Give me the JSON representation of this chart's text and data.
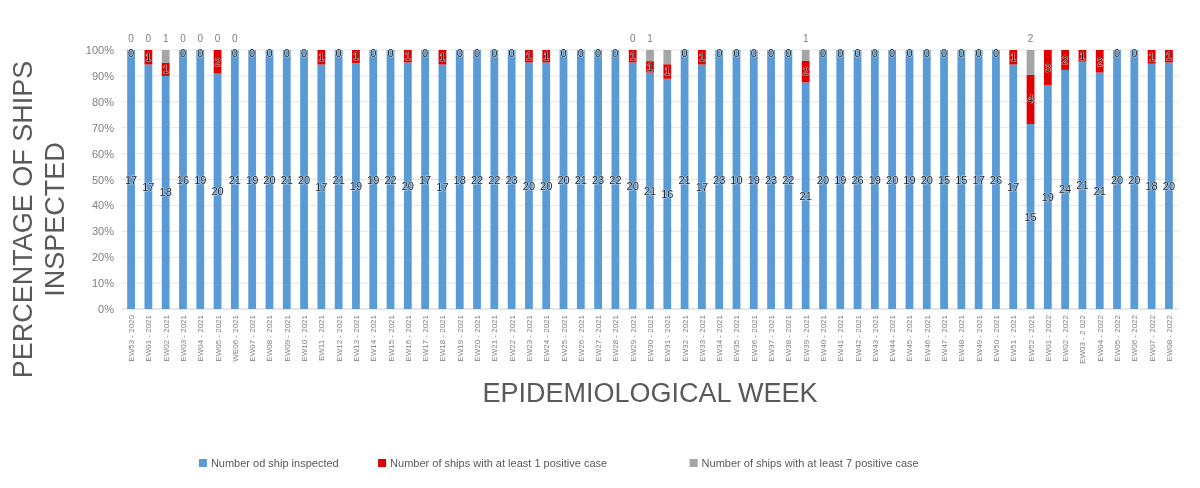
{
  "chart_data": {
    "type": "bar",
    "stacked": true,
    "xlabel": "EPIDEMIOLOGICAL WEEK",
    "ylabel": "PERCENTAGE OF SHIPS INSPECTED",
    "legend": "bottom",
    "grid": "y",
    "ylim": [
      0,
      100
    ],
    "yticks": [
      {
        "value": 0,
        "label": "0%"
      },
      {
        "value": 10,
        "label": "10%"
      },
      {
        "value": 20,
        "label": "20%"
      },
      {
        "value": 30,
        "label": "30%"
      },
      {
        "value": 40,
        "label": "40%"
      },
      {
        "value": 50,
        "label": "50%"
      },
      {
        "value": 60,
        "label": "60%"
      },
      {
        "value": 70,
        "label": "70%"
      },
      {
        "value": 80,
        "label": "80%"
      },
      {
        "value": 90,
        "label": "90%"
      },
      {
        "value": 100,
        "label": "100%"
      }
    ],
    "categories": [
      "EW53 - 2020",
      "EW01 - 2021",
      "EW02 - 2021",
      "EW03 - 2021",
      "EW04 - 2021",
      "EW05 - 2021",
      "WE06 - 2021",
      "EW07 - 2021",
      "EW08 - 2021",
      "EW09 - 2021",
      "EW10 - 2021",
      "EW11 - 2021",
      "EW12 - 2021",
      "EW13 - 2021",
      "EW14 - 2021",
      "EW15 - 2021",
      "EW16 - 2021",
      "EW17 - 2021",
      "EW18 - 2021",
      "EW19 - 2021",
      "EW20 - 2021",
      "EW21 - 2021",
      "EW22 - 2021",
      "EW23 - 2021",
      "EW24 - 2021",
      "EW25 - 2021",
      "EW26 - 2021",
      "EW27 - 2021",
      "EW28 - 2021",
      "EW29 - 2021",
      "EW30 - 2021",
      "EW31 - 2021",
      "EW32 - 2021",
      "EW33 - 2021",
      "EW34 - 2021",
      "EW35 - 2021",
      "EW36 - 2021",
      "EW37 - 2021",
      "EW38 - 2021",
      "EW39 - 2021",
      "EW40 - 2021",
      "EW41 - 2021",
      "EW42 - 2021",
      "EW43 - 2021",
      "EW44 - 2021",
      "EW45 - 2021",
      "EW46 - 2021",
      "EW47 - 2021",
      "EW48 - 2021",
      "EW49 - 2021",
      "EW50 - 2021",
      "EW51 - 2021",
      "EW52 - 2021",
      "EW01 - 2022",
      "EW02 - 2022",
      "EW03 - 2 022",
      "EW04 - 2022",
      "EW05 - 2022",
      "EW06 - 2022",
      "EW07 - 2022",
      "EW08 - 2022"
    ],
    "series": [
      {
        "name": "Number od ship inspected",
        "color": "#5b9bd5",
        "values": [
          100,
          94.4,
          90,
          100,
          100,
          90.9,
          100,
          100,
          100,
          100,
          100,
          94.4,
          100,
          95,
          100,
          100,
          95.2,
          100,
          94.4,
          100,
          100,
          100,
          100,
          95.2,
          95.2,
          100,
          100,
          100,
          100,
          95.2,
          91.3,
          88.9,
          100,
          94.4,
          100,
          100,
          100,
          100,
          100,
          87.5,
          100,
          100,
          100,
          100,
          100,
          100,
          100,
          100,
          100,
          100,
          100,
          94.4,
          71.4,
          86.4,
          92.3,
          95.5,
          91.3,
          100,
          100,
          94.7,
          95.2
        ]
      },
      {
        "name": "Number of ships with at least 1 positive case",
        "color": "#e00000",
        "values": [
          0,
          5.6,
          5,
          0,
          0,
          9.1,
          0,
          0,
          0,
          0,
          0,
          5.6,
          0,
          5,
          0,
          0,
          4.8,
          0,
          5.6,
          0,
          0,
          0,
          0,
          4.8,
          4.8,
          0,
          0,
          0,
          0,
          4.8,
          4.4,
          5.6,
          0,
          5.6,
          0,
          0,
          0,
          0,
          0,
          8.3,
          0,
          0,
          0,
          0,
          0,
          0,
          0,
          0,
          0,
          0,
          0,
          5.6,
          19,
          13.6,
          7.7,
          4.5,
          8.7,
          0,
          0,
          5.3,
          4.8
        ]
      },
      {
        "name": "Number of ships with at least 7 positive case",
        "color": "#a5a5a5",
        "values": [
          0,
          0,
          5,
          0,
          0,
          0,
          0,
          0,
          0,
          0,
          0,
          0,
          0,
          0,
          0,
          0,
          0,
          0,
          0,
          0,
          0,
          0,
          0,
          0,
          0,
          0,
          0,
          0,
          0,
          0,
          4.3,
          5.5,
          0,
          0,
          0,
          0,
          0,
          0,
          0,
          4.2,
          0,
          0,
          0,
          0,
          0,
          0,
          0,
          0,
          0,
          0,
          0,
          0,
          9.6,
          0,
          0,
          0,
          0,
          0,
          0,
          0,
          0
        ]
      }
    ],
    "annotations": [
      {
        "text": "17",
        "x": "EW53 - 2020",
        "y": 50
      },
      {
        "text": "17",
        "x": "EW01 - 2021",
        "y": 47.2
      },
      {
        "text": "18",
        "x": "EW02 - 2021",
        "y": 45
      },
      {
        "text": "16",
        "x": "EW03 - 2021",
        "y": 50
      },
      {
        "text": "19",
        "x": "EW04 - 2021",
        "y": 50
      },
      {
        "text": "20",
        "x": "EW05 - 2021",
        "y": 45.5
      },
      {
        "text": "21",
        "x": "WE06 - 2021",
        "y": 50
      },
      {
        "text": "19",
        "x": "EW07 - 2021",
        "y": 50
      },
      {
        "text": "20",
        "x": "EW08 - 2021",
        "y": 50
      },
      {
        "text": "21",
        "x": "EW09 - 2021",
        "y": 50
      },
      {
        "text": "20",
        "x": "EW10 - 2021",
        "y": 50
      },
      {
        "text": "17",
        "x": "EW11 - 2021",
        "y": 47.2
      },
      {
        "text": "21",
        "x": "EW12 - 2021",
        "y": 50
      },
      {
        "text": "19",
        "x": "EW13 - 2021",
        "y": 47.5
      },
      {
        "text": "19",
        "x": "EW14 - 2021",
        "y": 50
      },
      {
        "text": "22",
        "x": "EW15 - 2021",
        "y": 50
      },
      {
        "text": "20",
        "x": "EW16 - 2021",
        "y": 47.6
      },
      {
        "text": "17",
        "x": "EW17 - 2021",
        "y": 50
      },
      {
        "text": "17",
        "x": "EW18 - 2021",
        "y": 47.2
      },
      {
        "text": "18",
        "x": "EW19 - 2021",
        "y": 50
      },
      {
        "text": "22",
        "x": "EW20 - 2021",
        "y": 50
      },
      {
        "text": "22",
        "x": "EW21 - 2021",
        "y": 50
      },
      {
        "text": "23",
        "x": "EW22 - 2021",
        "y": 50
      },
      {
        "text": "20",
        "x": "EW23 - 2021",
        "y": 47.6
      },
      {
        "text": "20",
        "x": "EW24 - 2021",
        "y": 47.6
      },
      {
        "text": "20",
        "x": "EW25 - 2021",
        "y": 50
      },
      {
        "text": "21",
        "x": "EW26 - 2021",
        "y": 50
      },
      {
        "text": "23",
        "x": "EW27 - 2021",
        "y": 50
      },
      {
        "text": "22",
        "x": "EW28 - 2021",
        "y": 50
      },
      {
        "text": "20",
        "x": "EW29 - 2021",
        "y": 47.6
      },
      {
        "text": "21",
        "x": "EW30 - 2021",
        "y": 45.7
      },
      {
        "text": "16",
        "x": "EW31 - 2021",
        "y": 44.5
      },
      {
        "text": "21",
        "x": "EW32 - 2021",
        "y": 50
      },
      {
        "text": "17",
        "x": "EW33 - 2021",
        "y": 47.2
      },
      {
        "text": "23",
        "x": "EW34 - 2021",
        "y": 50
      },
      {
        "text": "10",
        "x": "EW35 - 2021",
        "y": 50
      },
      {
        "text": "19",
        "x": "EW36 - 2021",
        "y": 50
      },
      {
        "text": "23",
        "x": "EW37 - 2021",
        "y": 50
      },
      {
        "text": "22",
        "x": "EW38 - 2021",
        "y": 50
      },
      {
        "text": "21",
        "x": "EW39 - 2021",
        "y": 43.8
      },
      {
        "text": "20",
        "x": "EW40 - 2021",
        "y": 50
      },
      {
        "text": "19",
        "x": "EW41 - 2021",
        "y": 50
      },
      {
        "text": "26",
        "x": "EW42 - 2021",
        "y": 50
      },
      {
        "text": "19",
        "x": "EW43 - 2021",
        "y": 50
      },
      {
        "text": "20",
        "x": "EW44 - 2021",
        "y": 50
      },
      {
        "text": "19",
        "x": "EW45 - 2021",
        "y": 50
      },
      {
        "text": "20",
        "x": "EW46 - 2021",
        "y": 50
      },
      {
        "text": "15",
        "x": "EW47 - 2021",
        "y": 50
      },
      {
        "text": "15",
        "x": "EW48 - 2021",
        "y": 50
      },
      {
        "text": "17",
        "x": "EW49 - 2021",
        "y": 50
      },
      {
        "text": "26",
        "x": "EW50 - 2021",
        "y": 50
      },
      {
        "text": "17",
        "x": "EW51 - 2021",
        "y": 47.2
      },
      {
        "text": "15",
        "x": "EW52 - 2021",
        "y": 35.7
      },
      {
        "text": "19",
        "x": "EW01 - 2022",
        "y": 43.2
      },
      {
        "text": "24",
        "x": "EW02 - 2022",
        "y": 46.2
      },
      {
        "text": "21",
        "x": "EW03 - 2 022",
        "y": 47.8
      },
      {
        "text": "21",
        "x": "EW04 - 2022",
        "y": 45.7
      },
      {
        "text": "20",
        "x": "EW05 - 2022",
        "y": 50
      },
      {
        "text": "20",
        "x": "EW06 - 2022",
        "y": 50
      },
      {
        "text": "18",
        "x": "EW07 - 2022",
        "y": 47.4
      },
      {
        "text": "20",
        "x": "EW08 - 2022",
        "y": 47.6
      },
      {
        "text": "0",
        "x": "EW53 - 2020",
        "y": 99
      },
      {
        "text": "1",
        "x": "EW01 - 2021",
        "y": 97.2
      },
      {
        "text": "1",
        "x": "EW02 - 2021",
        "y": 92.5
      },
      {
        "text": "0",
        "x": "EW03 - 2021",
        "y": 99
      },
      {
        "text": "0",
        "x": "EW04 - 2021",
        "y": 99
      },
      {
        "text": "2",
        "x": "EW05 - 2021",
        "y": 95.5
      },
      {
        "text": "0",
        "x": "WE06 - 2021",
        "y": 99
      },
      {
        "text": "0",
        "x": "EW07 - 2021",
        "y": 99
      },
      {
        "text": "0",
        "x": "EW08 - 2021",
        "y": 99
      },
      {
        "text": "0",
        "x": "EW09 - 2021",
        "y": 99
      },
      {
        "text": "0",
        "x": "EW10 - 2021",
        "y": 99
      },
      {
        "text": "1",
        "x": "EW11 - 2021",
        "y": 97.2
      },
      {
        "text": "0",
        "x": "EW12 - 2021",
        "y": 99
      },
      {
        "text": "1",
        "x": "EW13 - 2021",
        "y": 97.5
      },
      {
        "text": "0",
        "x": "EW14 - 2021",
        "y": 99
      },
      {
        "text": "0",
        "x": "EW15 - 2021",
        "y": 99
      },
      {
        "text": "1",
        "x": "EW16 - 2021",
        "y": 97.6
      },
      {
        "text": "0",
        "x": "EW17 - 2021",
        "y": 99
      },
      {
        "text": "1",
        "x": "EW18 - 2021",
        "y": 97.2
      },
      {
        "text": "0",
        "x": "EW19 - 2021",
        "y": 99
      },
      {
        "text": "0",
        "x": "EW20 - 2021",
        "y": 99
      },
      {
        "text": "0",
        "x": "EW21 - 2021",
        "y": 99
      },
      {
        "text": "0",
        "x": "EW22 - 2021",
        "y": 99
      },
      {
        "text": "1",
        "x": "EW23 - 2021",
        "y": 97.6
      },
      {
        "text": "1",
        "x": "EW24 - 2021",
        "y": 97.6
      },
      {
        "text": "0",
        "x": "EW25 - 2021",
        "y": 99
      },
      {
        "text": "0",
        "x": "EW26 - 2021",
        "y": 99
      },
      {
        "text": "0",
        "x": "EW27 - 2021",
        "y": 99
      },
      {
        "text": "0",
        "x": "EW28 - 2021",
        "y": 99
      },
      {
        "text": "1",
        "x": "EW29 - 2021",
        "y": 97.6
      },
      {
        "text": "1",
        "x": "EW30 - 2021",
        "y": 93.5
      },
      {
        "text": "1",
        "x": "EW31 - 2021",
        "y": 91.7
      },
      {
        "text": "0",
        "x": "EW32 - 2021",
        "y": 99
      },
      {
        "text": "1",
        "x": "EW33 - 2021",
        "y": 97.2
      },
      {
        "text": "0",
        "x": "EW34 - 2021",
        "y": 99
      },
      {
        "text": "0",
        "x": "EW35 - 2021",
        "y": 99
      },
      {
        "text": "0",
        "x": "EW36 - 2021",
        "y": 99
      },
      {
        "text": "0",
        "x": "EW37 - 2021",
        "y": 99
      },
      {
        "text": "0",
        "x": "EW38 - 2021",
        "y": 99
      },
      {
        "text": "2",
        "x": "EW39 - 2021",
        "y": 91.7
      },
      {
        "text": "0",
        "x": "EW40 - 2021",
        "y": 99
      },
      {
        "text": "0",
        "x": "EW41 - 2021",
        "y": 99
      },
      {
        "text": "0",
        "x": "EW42 - 2021",
        "y": 99
      },
      {
        "text": "0",
        "x": "EW43 - 2021",
        "y": 99
      },
      {
        "text": "0",
        "x": "EW44 - 2021",
        "y": 99
      },
      {
        "text": "0",
        "x": "EW45 - 2021",
        "y": 99
      },
      {
        "text": "0",
        "x": "EW46 - 2021",
        "y": 99
      },
      {
        "text": "0",
        "x": "EW47 - 2021",
        "y": 99
      },
      {
        "text": "0",
        "x": "EW48 - 2021",
        "y": 99
      },
      {
        "text": "0",
        "x": "EW49 - 2021",
        "y": 99
      },
      {
        "text": "0",
        "x": "EW50 - 2021",
        "y": 99
      },
      {
        "text": "1",
        "x": "EW51 - 2021",
        "y": 97.2
      },
      {
        "text": "4",
        "x": "EW52 - 2021",
        "y": 80.9
      },
      {
        "text": "3",
        "x": "EW01 - 2022",
        "y": 93.2
      },
      {
        "text": "2",
        "x": "EW02 - 2022",
        "y": 96.2
      },
      {
        "text": "1",
        "x": "EW03 - 2 022",
        "y": 97.8
      },
      {
        "text": "2",
        "x": "EW04 - 2022",
        "y": 95.5
      },
      {
        "text": "0",
        "x": "EW05 - 2022",
        "y": 99
      },
      {
        "text": "0",
        "x": "EW06 - 2022",
        "y": 99
      },
      {
        "text": "1",
        "x": "EW07 - 2022",
        "y": 97.4
      },
      {
        "text": "1",
        "x": "EW08 - 2022",
        "y": 97.6
      },
      {
        "text": "0",
        "x": "EW53 - 2020",
        "y": 100
      },
      {
        "text": "0",
        "x": "EW01 - 2021",
        "y": 100
      },
      {
        "text": "1",
        "x": "EW02 - 2021",
        "y": 100
      },
      {
        "text": "0",
        "x": "EW03 - 2021",
        "y": 100
      },
      {
        "text": "0",
        "x": "EW04 - 2021",
        "y": 100
      },
      {
        "text": "0",
        "x": "EW05 - 2021",
        "y": 100
      },
      {
        "text": "0",
        "x": "WE06 - 2021",
        "y": 100
      },
      {
        "text": "0",
        "x": "EW29 - 2021",
        "y": 100
      },
      {
        "text": "1",
        "x": "EW30 - 2021",
        "y": 100
      },
      {
        "text": "1",
        "x": "EW39 - 2021",
        "y": 100
      },
      {
        "text": "2",
        "x": "EW52 - 2021",
        "y": 100
      }
    ]
  }
}
